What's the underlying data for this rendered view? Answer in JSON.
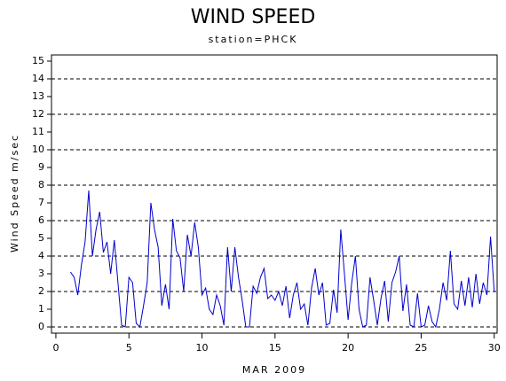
{
  "chart_data": {
    "type": "line",
    "title": "WIND SPEED",
    "subtitle": "station=PHCK",
    "xlabel": "MAR 2009",
    "ylabel": "Wind Speed m/sec",
    "color": "#0000cc",
    "xlim": [
      -0.3,
      30.2
    ],
    "ylim": [
      -0.35,
      15.35
    ],
    "xticks": [
      0,
      5,
      10,
      15,
      20,
      25,
      30
    ],
    "yticks": [
      0,
      1,
      2,
      3,
      4,
      5,
      6,
      7,
      8,
      9,
      10,
      11,
      12,
      13,
      14,
      15
    ],
    "grid_yticks": [
      0,
      2,
      4,
      6,
      8,
      10,
      12,
      14
    ],
    "x": [
      1,
      1.25,
      1.5,
      1.75,
      2,
      2.25,
      2.5,
      2.75,
      3,
      3.25,
      3.5,
      3.75,
      4,
      4.25,
      4.5,
      4.75,
      5,
      5.25,
      5.5,
      5.75,
      6,
      6.25,
      6.5,
      6.75,
      7,
      7.25,
      7.5,
      7.75,
      8,
      8.25,
      8.5,
      8.75,
      9,
      9.25,
      9.5,
      9.75,
      10,
      10.25,
      10.5,
      10.75,
      11,
      11.25,
      11.5,
      11.75,
      12,
      12.25,
      12.5,
      12.75,
      13,
      13.25,
      13.5,
      13.75,
      14,
      14.25,
      14.5,
      14.75,
      15,
      15.25,
      15.5,
      15.75,
      16,
      16.25,
      16.5,
      16.75,
      17,
      17.25,
      17.5,
      17.75,
      18,
      18.25,
      18.5,
      18.75,
      19,
      19.25,
      19.5,
      19.75,
      20,
      20.25,
      20.5,
      20.75,
      21,
      21.25,
      21.5,
      21.75,
      22,
      22.25,
      22.5,
      22.75,
      23,
      23.25,
      23.5,
      23.75,
      24,
      24.25,
      24.5,
      24.75,
      25,
      25.25,
      25.5,
      25.75,
      26,
      26.25,
      26.5,
      26.75,
      27,
      27.25,
      27.5,
      27.75,
      28,
      28.25,
      28.5,
      28.75,
      29,
      29.25,
      29.5,
      29.75,
      30
    ],
    "values": [
      3.1,
      2.8,
      1.8,
      3.5,
      4.8,
      7.7,
      4.0,
      5.5,
      6.5,
      4.2,
      4.8,
      3.0,
      4.9,
      2.5,
      0.1,
      0.0,
      2.8,
      2.5,
      0.2,
      0.0,
      1.2,
      2.5,
      7.0,
      5.5,
      4.5,
      1.2,
      2.4,
      1.0,
      6.1,
      4.3,
      3.9,
      2.0,
      5.2,
      4.0,
      5.9,
      4.5,
      1.8,
      2.2,
      1.0,
      0.7,
      1.8,
      1.2,
      0.1,
      4.5,
      2.0,
      4.5,
      2.8,
      1.5,
      0.0,
      0.0,
      2.3,
      1.9,
      2.8,
      3.3,
      1.6,
      1.8,
      1.5,
      2.0,
      1.2,
      2.3,
      0.5,
      1.8,
      2.5,
      1.0,
      1.3,
      0.1,
      2.2,
      3.3,
      1.8,
      2.5,
      0.1,
      0.2,
      2.1,
      0.8,
      5.5,
      3.0,
      0.4,
      2.5,
      4.0,
      1.0,
      0.0,
      0.1,
      2.8,
      1.5,
      0.1,
      1.6,
      2.6,
      0.3,
      2.5,
      3.1,
      4.0,
      0.9,
      2.4,
      0.1,
      0.0,
      1.9,
      0.0,
      0.1,
      1.2,
      0.3,
      0.0,
      1.0,
      2.5,
      1.5,
      4.3,
      1.3,
      1.0,
      2.6,
      1.2,
      2.8,
      1.1,
      3.0,
      1.3,
      2.5,
      1.8,
      5.1,
      2.0
    ]
  }
}
